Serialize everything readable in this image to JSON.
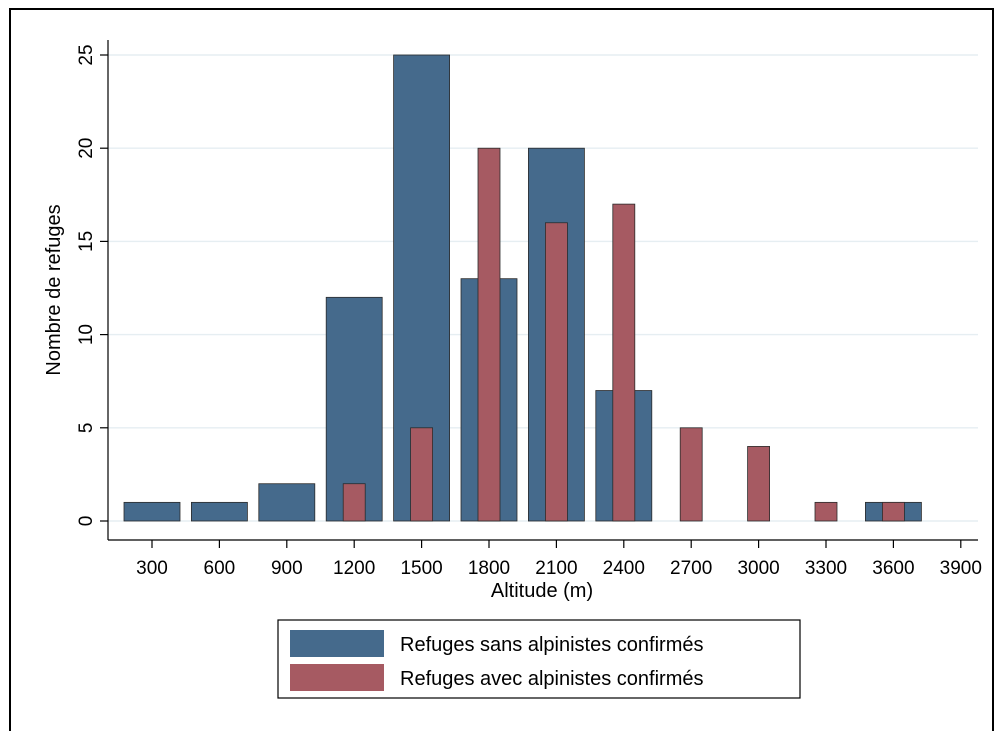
{
  "chart_data": {
    "type": "bar",
    "title": "",
    "xlabel": "Altitude (m)",
    "ylabel": "Nombre de refuges",
    "x_ticks": [
      300,
      600,
      900,
      1200,
      1500,
      1800,
      2100,
      2400,
      2700,
      3000,
      3300,
      3600,
      3900
    ],
    "y_ticks": [
      0,
      5,
      10,
      15,
      20,
      25
    ],
    "ylim": [
      0,
      25
    ],
    "grid": true,
    "legend_position": "bottom",
    "series": [
      {
        "name": "Refuges sans alpinistes confirmés",
        "color": "#456a8c",
        "x": [
          300,
          600,
          900,
          1200,
          1500,
          1800,
          2100,
          2400,
          2700,
          3000,
          3300,
          3600
        ],
        "values": [
          1,
          1,
          2,
          12,
          25,
          13,
          20,
          7,
          0,
          0,
          0,
          1
        ]
      },
      {
        "name": "Refuges avec alpinistes confirmés",
        "color": "#a65a62",
        "x": [
          300,
          600,
          900,
          1200,
          1500,
          1800,
          2100,
          2400,
          2700,
          3000,
          3300,
          3600
        ],
        "values": [
          0,
          0,
          0,
          2,
          5,
          20,
          16,
          17,
          5,
          4,
          1,
          1
        ]
      }
    ]
  }
}
